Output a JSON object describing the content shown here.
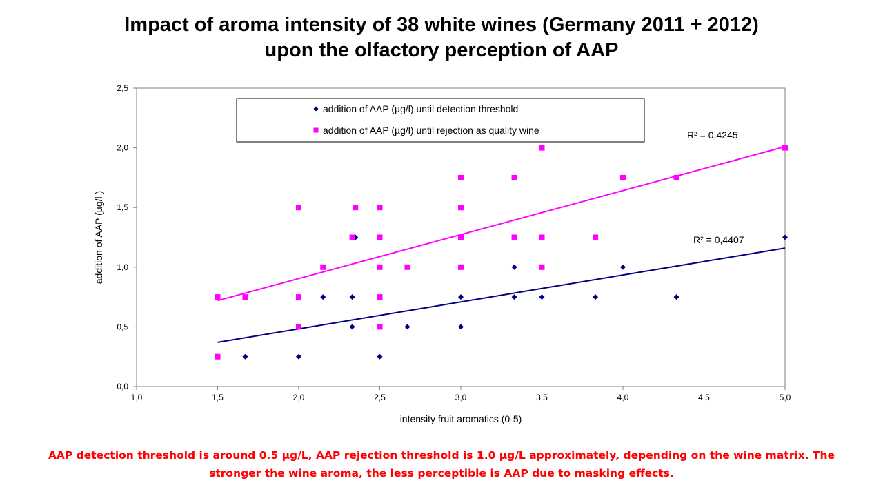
{
  "page": {
    "title_line1": "Impact of aroma intensity of 38 white wines (Germany 2011 + 2012)",
    "title_line2": "upon the olfactory perception of AAP",
    "caption_line1": "AAP detection threshold is around 0.5 µg/L, AAP rejection threshold is 1.0 µg/L approximately, depending on the wine matrix. The",
    "caption_line2": "stronger the wine aroma, the less perceptible is AAP due to masking effects."
  },
  "chart_data": {
    "type": "scatter",
    "title": "Impact of aroma intensity of 38 white wines (Germany 2011 + 2012) upon the olfactory perception of AAP",
    "xlabel": "intensity fruit aromatics (0-5)",
    "ylabel": "addition of AAP (µg/l )",
    "xlim": [
      1.0,
      5.0
    ],
    "ylim": [
      0.0,
      2.5
    ],
    "xticks": [
      "1,0",
      "1,5",
      "2,0",
      "2,5",
      "3,0",
      "3,5",
      "4,0",
      "4,5",
      "5,0"
    ],
    "yticks": [
      "0,0",
      "0,5",
      "1,0",
      "1,5",
      "2,0",
      "2,5"
    ],
    "grid": false,
    "legend_position": "top-center",
    "series": [
      {
        "name": "addition of AAP (µg/l) until detection threshold",
        "marker": "diamond",
        "color": "#000080",
        "trendline": {
          "x": [
            1.5,
            5.0
          ],
          "y": [
            0.37,
            1.16
          ],
          "r2_label": "R² = 0,4407"
        },
        "points": [
          {
            "x": 1.5,
            "y": 0.25
          },
          {
            "x": 1.5,
            "y": 0.75
          },
          {
            "x": 1.67,
            "y": 0.25
          },
          {
            "x": 2.0,
            "y": 0.25
          },
          {
            "x": 2.0,
            "y": 0.5
          },
          {
            "x": 2.0,
            "y": 0.75
          },
          {
            "x": 2.15,
            "y": 0.75
          },
          {
            "x": 2.33,
            "y": 0.75
          },
          {
            "x": 2.33,
            "y": 0.5
          },
          {
            "x": 2.35,
            "y": 1.25
          },
          {
            "x": 2.5,
            "y": 0.25
          },
          {
            "x": 2.5,
            "y": 0.5
          },
          {
            "x": 2.5,
            "y": 0.75
          },
          {
            "x": 2.67,
            "y": 0.5
          },
          {
            "x": 3.0,
            "y": 0.5
          },
          {
            "x": 3.0,
            "y": 0.75
          },
          {
            "x": 3.0,
            "y": 1.0
          },
          {
            "x": 3.33,
            "y": 0.75
          },
          {
            "x": 3.33,
            "y": 1.0
          },
          {
            "x": 3.5,
            "y": 0.75
          },
          {
            "x": 3.5,
            "y": 1.0
          },
          {
            "x": 3.83,
            "y": 0.75
          },
          {
            "x": 4.0,
            "y": 1.0
          },
          {
            "x": 4.33,
            "y": 0.75
          },
          {
            "x": 5.0,
            "y": 1.25
          }
        ]
      },
      {
        "name": "addition of AAP (µg/l) until rejection as quality wine",
        "marker": "square",
        "color": "#ff00ff",
        "trendline": {
          "x": [
            1.5,
            5.0
          ],
          "y": [
            0.72,
            2.01
          ],
          "r2_label": "R² = 0,4245"
        },
        "points": [
          {
            "x": 1.5,
            "y": 0.25
          },
          {
            "x": 1.5,
            "y": 0.75
          },
          {
            "x": 1.67,
            "y": 0.75
          },
          {
            "x": 2.0,
            "y": 0.5
          },
          {
            "x": 2.0,
            "y": 0.75
          },
          {
            "x": 2.0,
            "y": 1.5
          },
          {
            "x": 2.15,
            "y": 1.0
          },
          {
            "x": 2.33,
            "y": 1.25
          },
          {
            "x": 2.35,
            "y": 1.5
          },
          {
            "x": 2.5,
            "y": 0.5
          },
          {
            "x": 2.5,
            "y": 0.75
          },
          {
            "x": 2.5,
            "y": 1.0
          },
          {
            "x": 2.5,
            "y": 1.25
          },
          {
            "x": 2.5,
            "y": 1.5
          },
          {
            "x": 2.67,
            "y": 1.0
          },
          {
            "x": 3.0,
            "y": 1.0
          },
          {
            "x": 3.0,
            "y": 1.25
          },
          {
            "x": 3.0,
            "y": 1.5
          },
          {
            "x": 3.0,
            "y": 1.75
          },
          {
            "x": 3.33,
            "y": 1.25
          },
          {
            "x": 3.33,
            "y": 1.75
          },
          {
            "x": 3.5,
            "y": 1.0
          },
          {
            "x": 3.5,
            "y": 1.25
          },
          {
            "x": 3.5,
            "y": 2.0
          },
          {
            "x": 3.83,
            "y": 1.25
          },
          {
            "x": 4.0,
            "y": 1.75
          },
          {
            "x": 4.33,
            "y": 1.75
          },
          {
            "x": 5.0,
            "y": 2.0
          }
        ]
      }
    ]
  }
}
